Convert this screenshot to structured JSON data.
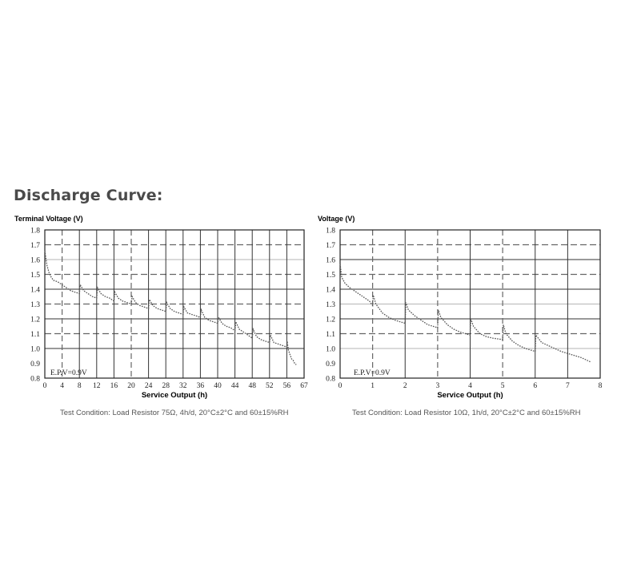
{
  "heading": "Discharge Curve:",
  "colors": {
    "solid_grid": "#333333",
    "dashed_grid": "#666666",
    "light_grid": "#b5b5b5",
    "curve": "#555555",
    "caption": "#555555"
  },
  "chart_data": [
    {
      "type": "line",
      "ylabel": "Terminal Voltage (V)",
      "xlabel": "Service Output (h)",
      "caption": "Test Condition: Load Resistor 75Ω, 4h/d, 20°C±2°C and 60±15%RH",
      "annotation": "E.P.V=0.9V",
      "xlim": [
        0,
        67
      ],
      "ylim": [
        0.8,
        1.8
      ],
      "x_ticks": [
        0,
        4,
        8,
        12,
        16,
        20,
        24,
        28,
        32,
        36,
        40,
        44,
        48,
        52,
        56,
        67
      ],
      "y_ticks": [
        1.8,
        1.7,
        1.6,
        1.5,
        1.4,
        1.3,
        1.2,
        1.1,
        1.0,
        0.9,
        0.8
      ],
      "grid": true,
      "series": [
        {
          "x": [
            0,
            0.5,
            1,
            1.5,
            2,
            3,
            4,
            5,
            6,
            7,
            8,
            8.2,
            9,
            10,
            11,
            12,
            12.2,
            13,
            14,
            15,
            16,
            16.2,
            17,
            18,
            19,
            20,
            20.2,
            21,
            22,
            23,
            24,
            24.2,
            25,
            26,
            27,
            28,
            28.2,
            29,
            30,
            31,
            32,
            32.2,
            33,
            34,
            35,
            36,
            36.2,
            37,
            38,
            39,
            40,
            40.2,
            41,
            42,
            43,
            44,
            44.2,
            45,
            46,
            47,
            48,
            48.2,
            49,
            50,
            51,
            52,
            52.2,
            53,
            54,
            55,
            56,
            56.2,
            57,
            58,
            59,
            60,
            61,
            62
          ],
          "y": [
            1.66,
            1.56,
            1.51,
            1.48,
            1.46,
            1.45,
            1.43,
            1.41,
            1.39,
            1.38,
            1.37,
            1.43,
            1.39,
            1.37,
            1.35,
            1.34,
            1.41,
            1.37,
            1.35,
            1.34,
            1.32,
            1.38,
            1.34,
            1.32,
            1.31,
            1.3,
            1.35,
            1.31,
            1.29,
            1.28,
            1.27,
            1.33,
            1.29,
            1.27,
            1.26,
            1.25,
            1.31,
            1.27,
            1.25,
            1.24,
            1.23,
            1.28,
            1.24,
            1.23,
            1.22,
            1.21,
            1.26,
            1.21,
            1.19,
            1.18,
            1.17,
            1.21,
            1.17,
            1.15,
            1.14,
            1.12,
            1.18,
            1.13,
            1.11,
            1.09,
            1.07,
            1.13,
            1.08,
            1.06,
            1.05,
            1.04,
            1.09,
            1.04,
            1.03,
            1.02,
            1.01,
            1.05,
            0.99,
            0.96,
            0.93,
            0.92,
            0.9,
            0.89
          ]
        }
      ]
    },
    {
      "type": "line",
      "ylabel": "Voltage (V)",
      "xlabel": "Service Output (h)",
      "caption": "Test Condition: Load Resistor 10Ω, 1h/d, 20°C±2°C and 60±15%RH",
      "annotation": "E.P.V=0.9V",
      "xlim": [
        0,
        8
      ],
      "ylim": [
        0.8,
        1.8
      ],
      "x_ticks": [
        0,
        1,
        2,
        3,
        4,
        5,
        6,
        7,
        8
      ],
      "y_ticks": [
        1.8,
        1.7,
        1.6,
        1.5,
        1.4,
        1.3,
        1.2,
        1.1,
        1.0,
        0.9,
        0.8
      ],
      "grid": true,
      "series": [
        {
          "x": [
            0,
            0.05,
            0.15,
            0.3,
            0.5,
            0.7,
            0.9,
            1.0,
            1.02,
            1.1,
            1.3,
            1.5,
            1.7,
            2.0,
            2.02,
            2.1,
            2.3,
            2.5,
            2.7,
            3.0,
            3.02,
            3.1,
            3.3,
            3.5,
            3.7,
            4.0,
            4.02,
            4.1,
            4.3,
            4.5,
            4.7,
            5.0,
            5.02,
            5.1,
            5.3,
            5.5,
            5.7,
            6.0,
            6.02,
            6.2,
            6.5,
            6.8,
            7.1,
            7.4,
            7.7
          ],
          "y": [
            1.57,
            1.48,
            1.44,
            1.41,
            1.38,
            1.35,
            1.32,
            1.29,
            1.36,
            1.3,
            1.24,
            1.21,
            1.19,
            1.17,
            1.31,
            1.26,
            1.22,
            1.19,
            1.16,
            1.14,
            1.26,
            1.21,
            1.16,
            1.13,
            1.11,
            1.09,
            1.2,
            1.15,
            1.1,
            1.08,
            1.07,
            1.06,
            1.16,
            1.1,
            1.05,
            1.02,
            1.0,
            0.98,
            1.09,
            1.04,
            1.01,
            0.98,
            0.96,
            0.94,
            0.91
          ]
        }
      ]
    }
  ]
}
